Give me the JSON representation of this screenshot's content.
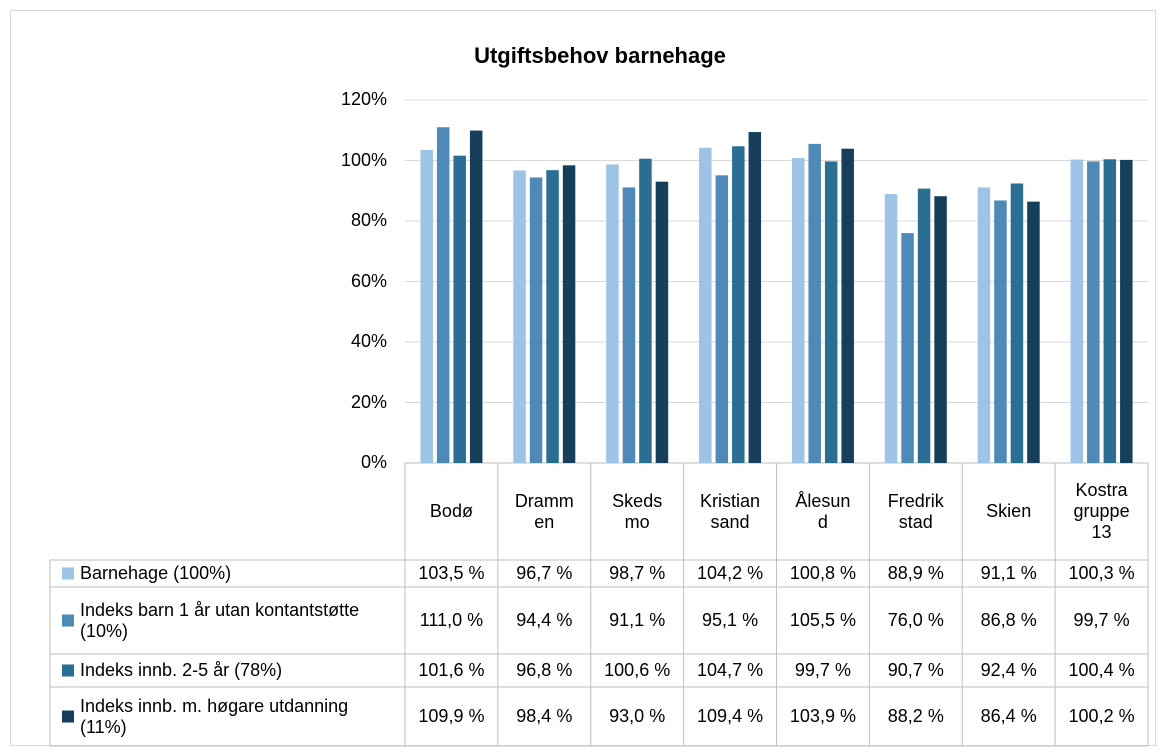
{
  "chart_data": {
    "type": "bar",
    "title": "Utgiftsbehov barnehage",
    "categories": [
      "Bodø",
      "Drammen",
      "Skedsmo",
      "Kristiansand",
      "Ålesund",
      "Fredrikstad",
      "Skien",
      "Kostra gruppe 13"
    ],
    "series": [
      {
        "name": "Barnehage (100%)",
        "color": "#9dc3e6",
        "values": [
          103.5,
          96.7,
          98.7,
          104.2,
          100.8,
          88.9,
          91.1,
          100.3
        ],
        "value_labels": [
          "103,5 %",
          "96,7 %",
          "98,7 %",
          "104,2 %",
          "100,8 %",
          "88,9 %",
          "91,1 %",
          "100,3 %"
        ]
      },
      {
        "name": "Indeks barn 1 år utan kontantstøtte (10%)",
        "color": "#4f89b8",
        "values": [
          111.0,
          94.4,
          91.1,
          95.1,
          105.5,
          76.0,
          86.8,
          99.7
        ],
        "value_labels": [
          "111,0 %",
          "94,4 %",
          "91,1 %",
          "95,1 %",
          "105,5 %",
          "76,0 %",
          "86,8 %",
          "99,7 %"
        ]
      },
      {
        "name": "Indeks innb. 2-5 år (78%)",
        "color": "#2b6e94",
        "values": [
          101.6,
          96.8,
          100.6,
          104.7,
          99.7,
          90.7,
          92.4,
          100.4
        ],
        "value_labels": [
          "101,6 %",
          "96,8 %",
          "100,6 %",
          "104,7 %",
          "99,7 %",
          "90,7 %",
          "92,4 %",
          "100,4 %"
        ]
      },
      {
        "name": "Indeks innb. m. høgare utdanning (11%)",
        "color": "#163f5c",
        "values": [
          109.9,
          98.4,
          93.0,
          109.4,
          103.9,
          88.2,
          86.4,
          100.2
        ],
        "value_labels": [
          "109,9 %",
          "98,4 %",
          "93,0 %",
          "109,4 %",
          "103,9 %",
          "88,2 %",
          "86,4 %",
          "100,2 %"
        ]
      }
    ],
    "ylim": [
      0,
      120
    ],
    "yticks": [
      {
        "value": 0,
        "label": "0%"
      },
      {
        "value": 20,
        "label": "20%"
      },
      {
        "value": 40,
        "label": "40%"
      },
      {
        "value": 60,
        "label": "60%"
      },
      {
        "value": 80,
        "label": "80%"
      },
      {
        "value": 100,
        "label": "100%"
      },
      {
        "value": 120,
        "label": "120%"
      }
    ],
    "grid": true
  }
}
